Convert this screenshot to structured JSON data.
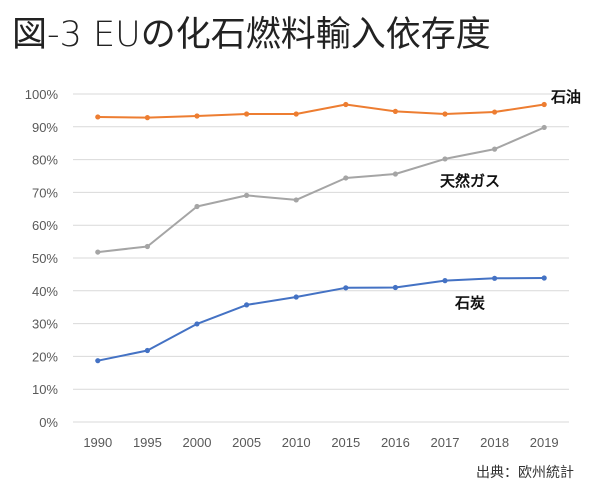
{
  "title": "図-3 EUの化石燃料輸入依存度",
  "source": "出典：欧州統計",
  "chart_data": {
    "type": "line",
    "title": "図-3 EUの化石燃料輸入依存度",
    "xlabel": "",
    "ylabel": "",
    "categories": [
      "1990",
      "1995",
      "2000",
      "2005",
      "2010",
      "2015",
      "2016",
      "2017",
      "2018",
      "2019"
    ],
    "ylim": [
      0,
      100
    ],
    "yticks": [
      0,
      10,
      20,
      30,
      40,
      50,
      60,
      70,
      80,
      90,
      100
    ],
    "ytick_labels": [
      "0%",
      "10%",
      "20%",
      "30%",
      "40%",
      "50%",
      "60%",
      "70%",
      "80%",
      "90%",
      "100%"
    ],
    "grid": true,
    "series": [
      {
        "name": "石油",
        "color": "#ED7D31",
        "values": [
          93.0,
          92.8,
          93.3,
          93.9,
          93.9,
          96.8,
          94.7,
          93.9,
          94.5,
          96.8
        ]
      },
      {
        "name": "天然ガス",
        "color": "#A5A5A5",
        "values": [
          51.8,
          53.5,
          65.7,
          69.1,
          67.7,
          74.4,
          75.6,
          80.2,
          83.2,
          89.8
        ]
      },
      {
        "name": "石炭",
        "color": "#4472C4",
        "values": [
          18.7,
          21.8,
          29.9,
          35.7,
          38.1,
          40.9,
          41.0,
          43.1,
          43.8,
          43.9
        ]
      }
    ]
  }
}
